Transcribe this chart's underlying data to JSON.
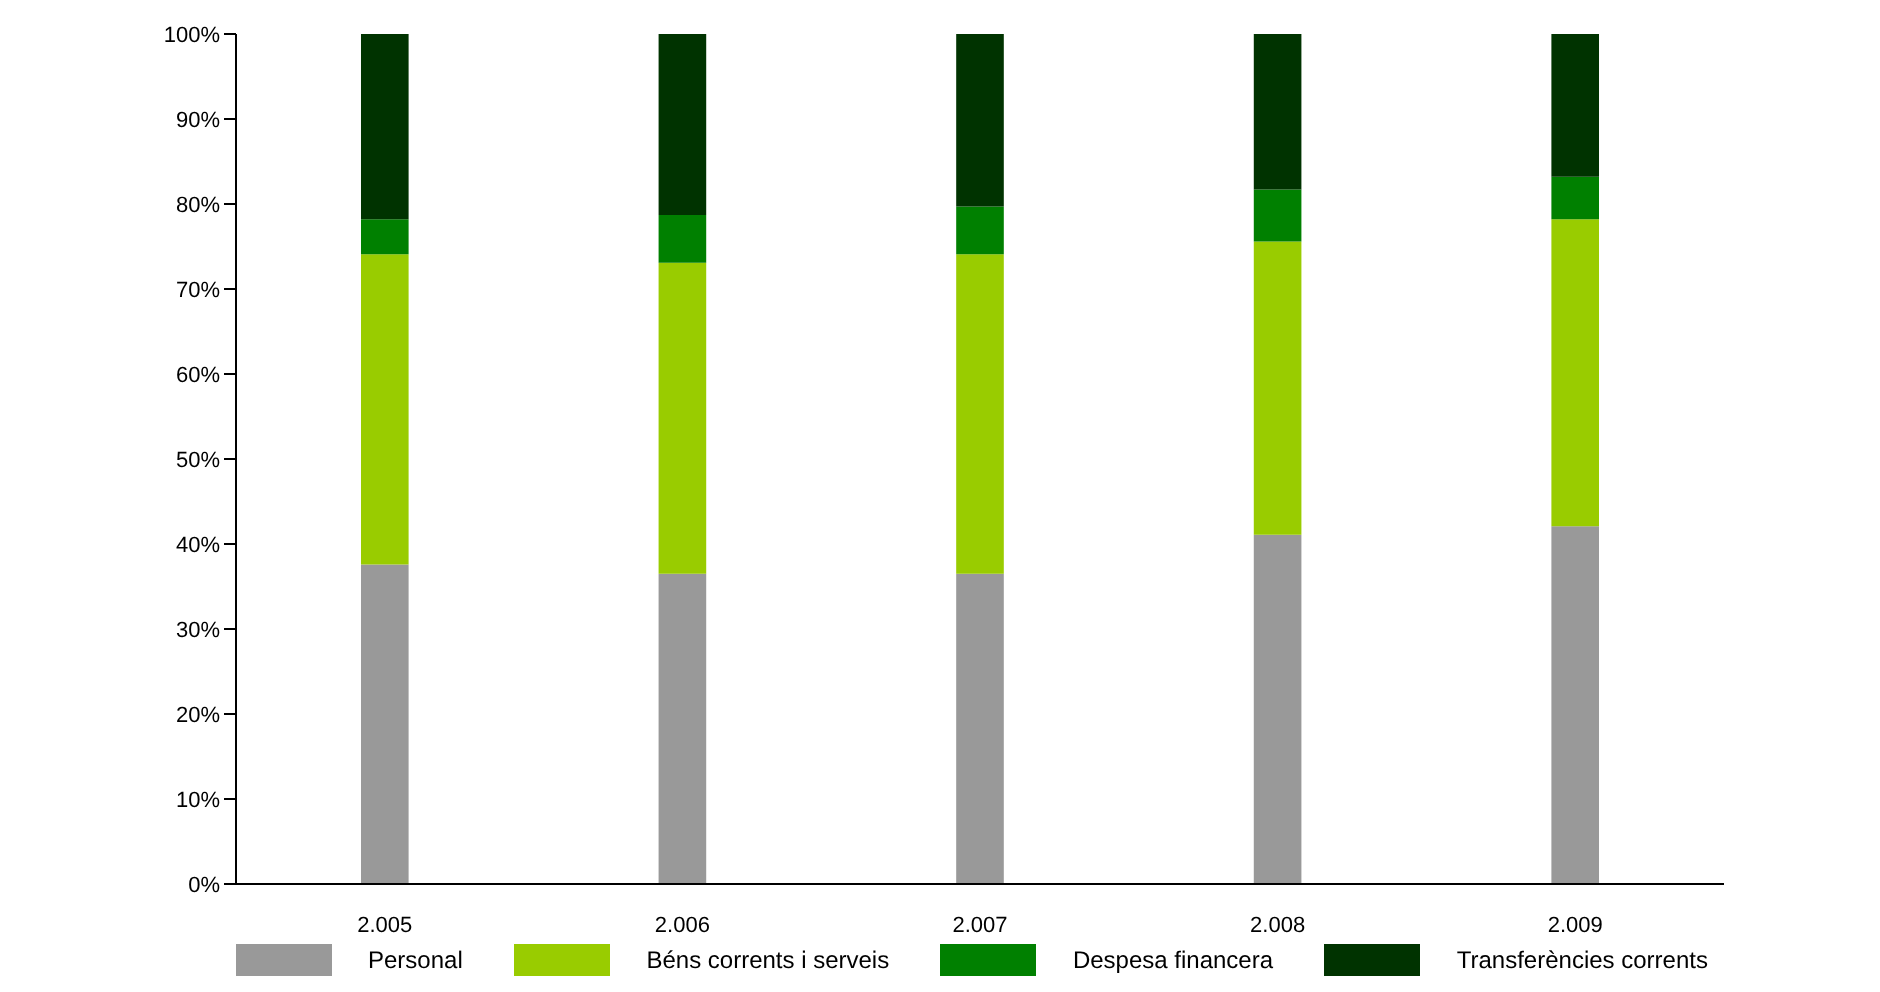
{
  "chart_data": {
    "type": "bar",
    "stacked": true,
    "categories": [
      "2.005",
      "2.006",
      "2.007",
      "2.008",
      "2.009"
    ],
    "series": [
      {
        "name": "Personal",
        "color": "#999999",
        "values": [
          37.6,
          36.5,
          36.5,
          41.1,
          42.1
        ]
      },
      {
        "name": "Béns corrents i serveis",
        "color": "#99cc00",
        "values": [
          36.5,
          36.6,
          37.6,
          34.5,
          36.1
        ]
      },
      {
        "name": "Despesa financera",
        "color": "#008000",
        "values": [
          4.1,
          5.6,
          5.6,
          6.1,
          5.0
        ]
      },
      {
        "name": "Transferències corrents",
        "color": "#003300",
        "values": [
          21.8,
          21.3,
          20.3,
          18.3,
          16.8
        ]
      }
    ],
    "ylim": [
      0,
      100
    ],
    "yticks": [
      {
        "value": 0,
        "label": "0%"
      },
      {
        "value": 10,
        "label": "10%"
      },
      {
        "value": 20,
        "label": "20%"
      },
      {
        "value": 30,
        "label": "30%"
      },
      {
        "value": 40,
        "label": "40%"
      },
      {
        "value": 50,
        "label": "50%"
      },
      {
        "value": 60,
        "label": "60%"
      },
      {
        "value": 70,
        "label": "70%"
      },
      {
        "value": 80,
        "label": "80%"
      },
      {
        "value": 90,
        "label": "90%"
      },
      {
        "value": 100,
        "label": "100%"
      }
    ],
    "grid": false,
    "legend": "bottom"
  }
}
